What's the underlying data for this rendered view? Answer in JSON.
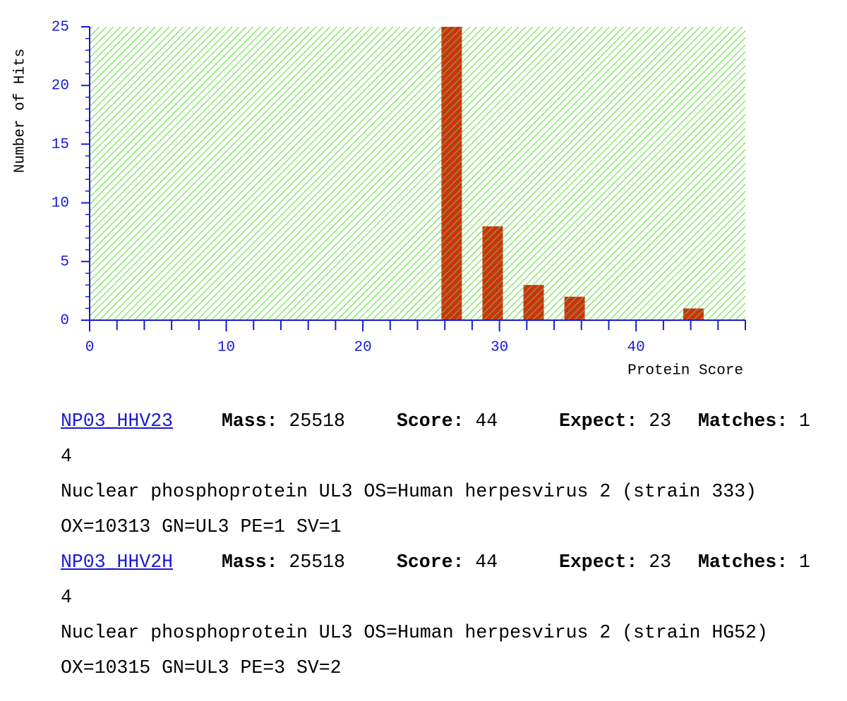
{
  "chart_data": {
    "type": "bar",
    "x": [
      26.5,
      29.5,
      32.5,
      35.5,
      44.2
    ],
    "values": [
      25,
      8,
      3,
      2,
      1
    ],
    "color": "#cc3311",
    "background": "#66dd44",
    "axis_color": "#1a1ad6",
    "xlabel": "Protein Score",
    "ylabel": "Number of Hits",
    "xlim": [
      0,
      48
    ],
    "xticks": [
      0,
      10,
      20,
      30,
      40
    ],
    "xminorticks": [
      2,
      4,
      6,
      8,
      12,
      14,
      16,
      18,
      22,
      24,
      26,
      28,
      32,
      34,
      36,
      38,
      42,
      44,
      46,
      48
    ],
    "ylim": [
      0,
      25
    ],
    "yticks": [
      0,
      5,
      10,
      15,
      20,
      25
    ],
    "yminorticks": [
      1,
      2,
      3,
      4,
      6,
      7,
      8,
      9,
      11,
      12,
      13,
      14,
      16,
      17,
      18,
      19,
      21,
      22,
      23,
      24
    ]
  },
  "labels": {
    "mass": "Mass:",
    "score": "Score:",
    "expect": "Expect:",
    "matches": "Matches:"
  },
  "hits": [
    {
      "accession": "NP03_HHV23",
      "mass": 25518,
      "score": 44,
      "expect": 23,
      "matches": 14,
      "description": "Nuclear phosphoprotein UL3 OS=Human herpesvirus 2 (strain 333) OX=10313 GN=UL3 PE=1 SV=1"
    },
    {
      "accession": "NP03_HHV2H",
      "mass": 25518,
      "score": 44,
      "expect": 23,
      "matches": 14,
      "description": "Nuclear phosphoprotein UL3 OS=Human herpesvirus 2 (strain HG52) OX=10315 GN=UL3 PE=3 SV=2"
    }
  ]
}
